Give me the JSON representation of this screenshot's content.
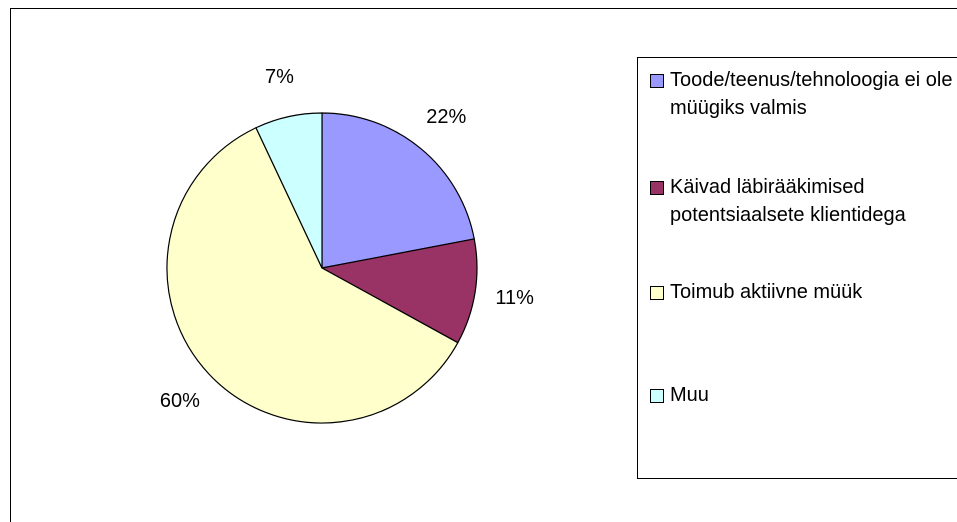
{
  "chart_data": {
    "type": "pie",
    "categories": [
      "Toode/teenus/tehnoloogia ei ole müügiks valmis",
      "Käivad läbirääkimised potentsiaalsete klientidega",
      "Toimub aktiivne müük",
      "Muu"
    ],
    "values": [
      22,
      11,
      60,
      7
    ],
    "value_labels": [
      "22%",
      "11%",
      "60%",
      "7%"
    ],
    "colors": [
      "#9999ff",
      "#993366",
      "#ffffcc",
      "#ccffff"
    ],
    "legend": "right"
  }
}
